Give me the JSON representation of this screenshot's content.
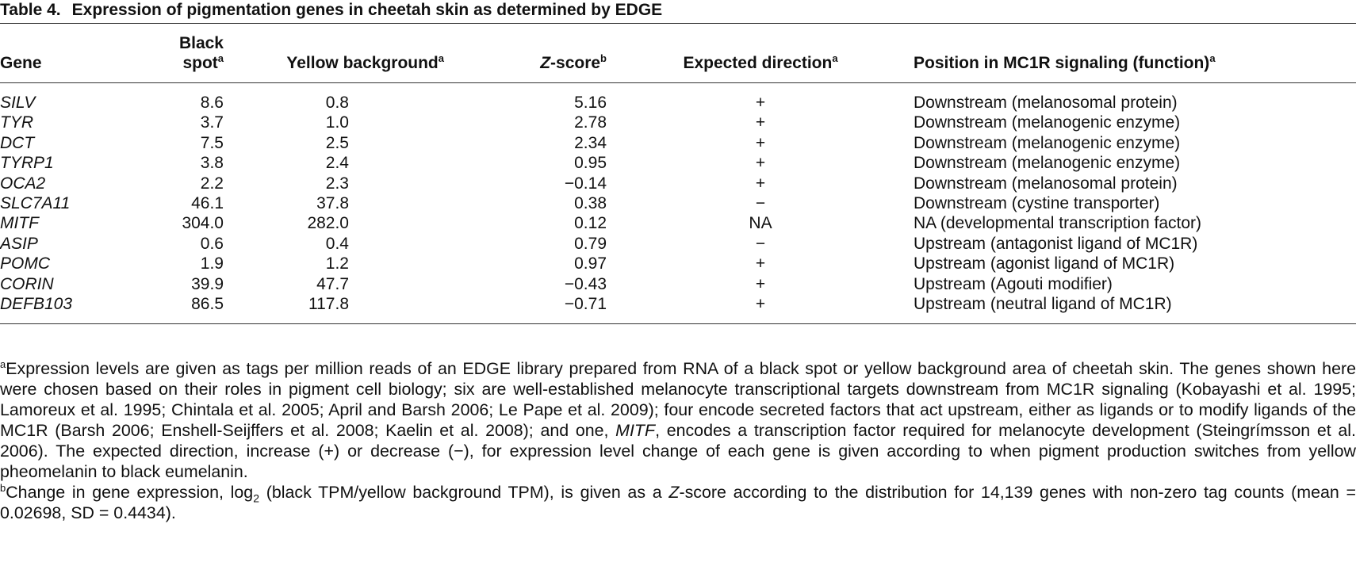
{
  "title": {
    "label": "Table 4.",
    "text": "Expression of pigmentation genes in cheetah skin as determined by EDGE"
  },
  "table": {
    "headers": [
      {
        "text": "Gene"
      },
      {
        "text": "Black spot",
        "note": "a"
      },
      {
        "text": "Yellow background",
        "note": "a"
      },
      {
        "italic": "Z",
        "text": "-score",
        "note": "b"
      },
      {
        "text": "Expected direction",
        "note": "a"
      },
      {
        "text": "Position in MC1R signaling (function)",
        "note": "a"
      }
    ],
    "rows": [
      [
        "SILV",
        "8.6",
        "0.8",
        "5.16",
        "+",
        "Downstream (melanosomal protein)"
      ],
      [
        "TYR",
        "3.7",
        "1.0",
        "2.78",
        "+",
        "Downstream (melanogenic enzyme)"
      ],
      [
        "DCT",
        "7.5",
        "2.5",
        "2.34",
        "+",
        "Downstream (melanogenic enzyme)"
      ],
      [
        "TYRP1",
        "3.8",
        "2.4",
        "0.95",
        "+",
        "Downstream (melanogenic enzyme)"
      ],
      [
        "OCA2",
        "2.2",
        "2.3",
        "−0.14",
        "+",
        "Downstream (melanosomal protein)"
      ],
      [
        "SLC7A11",
        "46.1",
        "37.8",
        "0.38",
        "−",
        "Downstream (cystine transporter)"
      ],
      [
        "MITF",
        "304.0",
        "282.0",
        "0.12",
        "NA",
        "NA (developmental transcription factor)"
      ],
      [
        "ASIP",
        "0.6",
        "0.4",
        "0.79",
        "−",
        "Upstream (antagonist ligand of MC1R)"
      ],
      [
        "POMC",
        "1.9",
        "1.2",
        "0.97",
        "+",
        "Upstream (agonist ligand of MC1R)"
      ],
      [
        "CORIN",
        "39.9",
        "47.7",
        "−0.43",
        "+",
        "Upstream (Agouti modifier)"
      ],
      [
        "DEFB103",
        "86.5",
        "117.8",
        "−0.71",
        "+",
        "Upstream (neutral ligand of MC1R)"
      ]
    ]
  },
  "footnotes": [
    {
      "mark": "a",
      "segments": [
        {
          "text": "Expression levels are given as tags per million reads of an EDGE library prepared from RNA of a black spot or yellow background area of cheetah skin. The genes shown here were chosen based on their roles in pigment cell biology; six are well-established melanocyte transcriptional targets downstream from MC1R signaling (Kobayashi et al. 1995; Lamoreux et al. 1995; Chintala et al. 2005; April and Barsh 2006; Le Pape et al. 2009); four encode secreted factors that act upstream, either as ligands or to modify ligands of the MC1R (Barsh 2006; Enshell-Seijffers et al. 2008; Kaelin et al. 2008); and one, "
        },
        {
          "text": "MITF",
          "style": "italic"
        },
        {
          "text": ", encodes a transcription factor required for melanocyte development (Steingrímsson et al. 2006). The expected direction, increase (+) or decrease (−), for expression level change of each gene is given according to when pigment production switches from yellow pheomelanin to black eumelanin."
        }
      ]
    },
    {
      "mark": "b",
      "segments": [
        {
          "text": "Change in gene expression, log"
        },
        {
          "text": "2",
          "style": "sub"
        },
        {
          "text": " (black TPM/yellow background TPM), is given as a "
        },
        {
          "text": "Z",
          "style": "italic"
        },
        {
          "text": "-score according to the distribution for 14,139 genes with non-zero tag counts (mean = 0.02698, SD = 0.4434)."
        }
      ]
    }
  ]
}
